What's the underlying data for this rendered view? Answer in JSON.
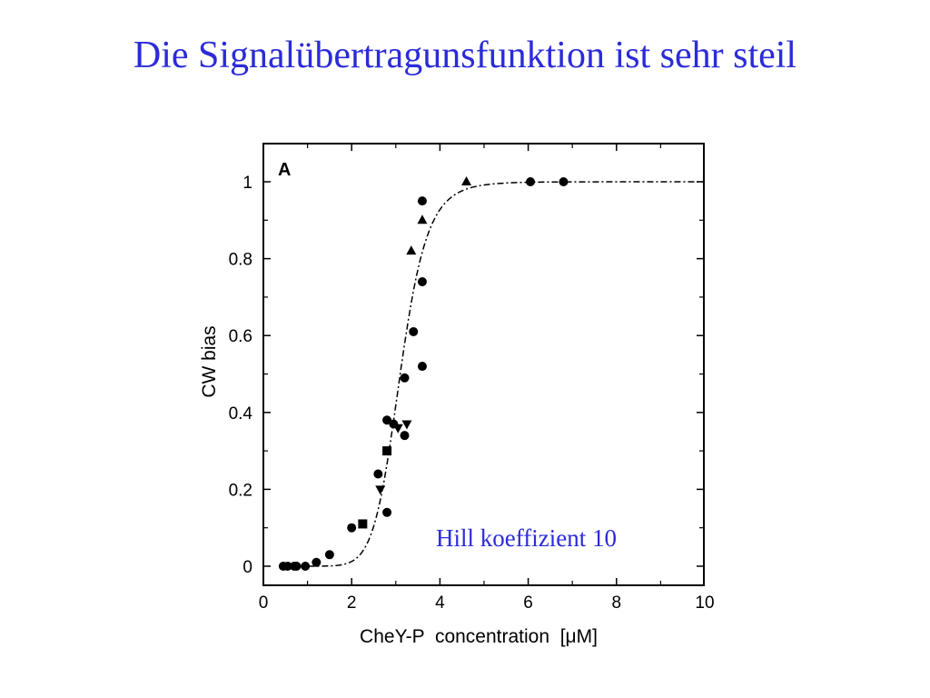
{
  "slide": {
    "title": "Die Signalübertragunsfunktion ist sehr steil"
  },
  "chart_data": {
    "type": "scatter",
    "panel_label": "A",
    "xlabel": "CheY-P  concentration  [μM]",
    "ylabel": "CW bias",
    "xlim": [
      0,
      10
    ],
    "ylim": [
      -0.05,
      1.1
    ],
    "x_ticks": [
      "0",
      "2",
      "4",
      "6",
      "8",
      "10"
    ],
    "y_ticks": [
      "0",
      "0.2",
      "0.4",
      "0.6",
      "0.8",
      "1"
    ],
    "annotation": "Hill koeffizient 10",
    "fit_curve": {
      "model": "hill",
      "n": 10,
      "K": 3.1,
      "style": "dash-dot"
    },
    "series": [
      {
        "marker": "circle",
        "points": [
          [
            0.45,
            0.0
          ],
          [
            0.55,
            0.0
          ],
          [
            0.7,
            0.0
          ],
          [
            0.75,
            0.0
          ],
          [
            0.95,
            0.0
          ],
          [
            1.2,
            0.01
          ],
          [
            1.5,
            0.03
          ],
          [
            2.0,
            0.1
          ],
          [
            2.6,
            0.24
          ],
          [
            2.8,
            0.14
          ],
          [
            2.8,
            0.38
          ],
          [
            2.95,
            0.37
          ],
          [
            3.2,
            0.34
          ],
          [
            3.2,
            0.49
          ],
          [
            3.4,
            0.61
          ],
          [
            3.6,
            0.52
          ],
          [
            3.6,
            0.74
          ],
          [
            3.6,
            0.95
          ],
          [
            6.05,
            1.0
          ],
          [
            6.8,
            1.0
          ]
        ]
      },
      {
        "marker": "square",
        "points": [
          [
            2.25,
            0.11
          ],
          [
            2.8,
            0.3
          ]
        ]
      },
      {
        "marker": "triangle-down",
        "points": [
          [
            2.65,
            0.2
          ],
          [
            3.05,
            0.36
          ],
          [
            3.25,
            0.37
          ]
        ]
      },
      {
        "marker": "triangle-up",
        "points": [
          [
            3.35,
            0.82
          ],
          [
            3.6,
            0.9
          ],
          [
            4.6,
            1.0
          ]
        ]
      }
    ]
  }
}
